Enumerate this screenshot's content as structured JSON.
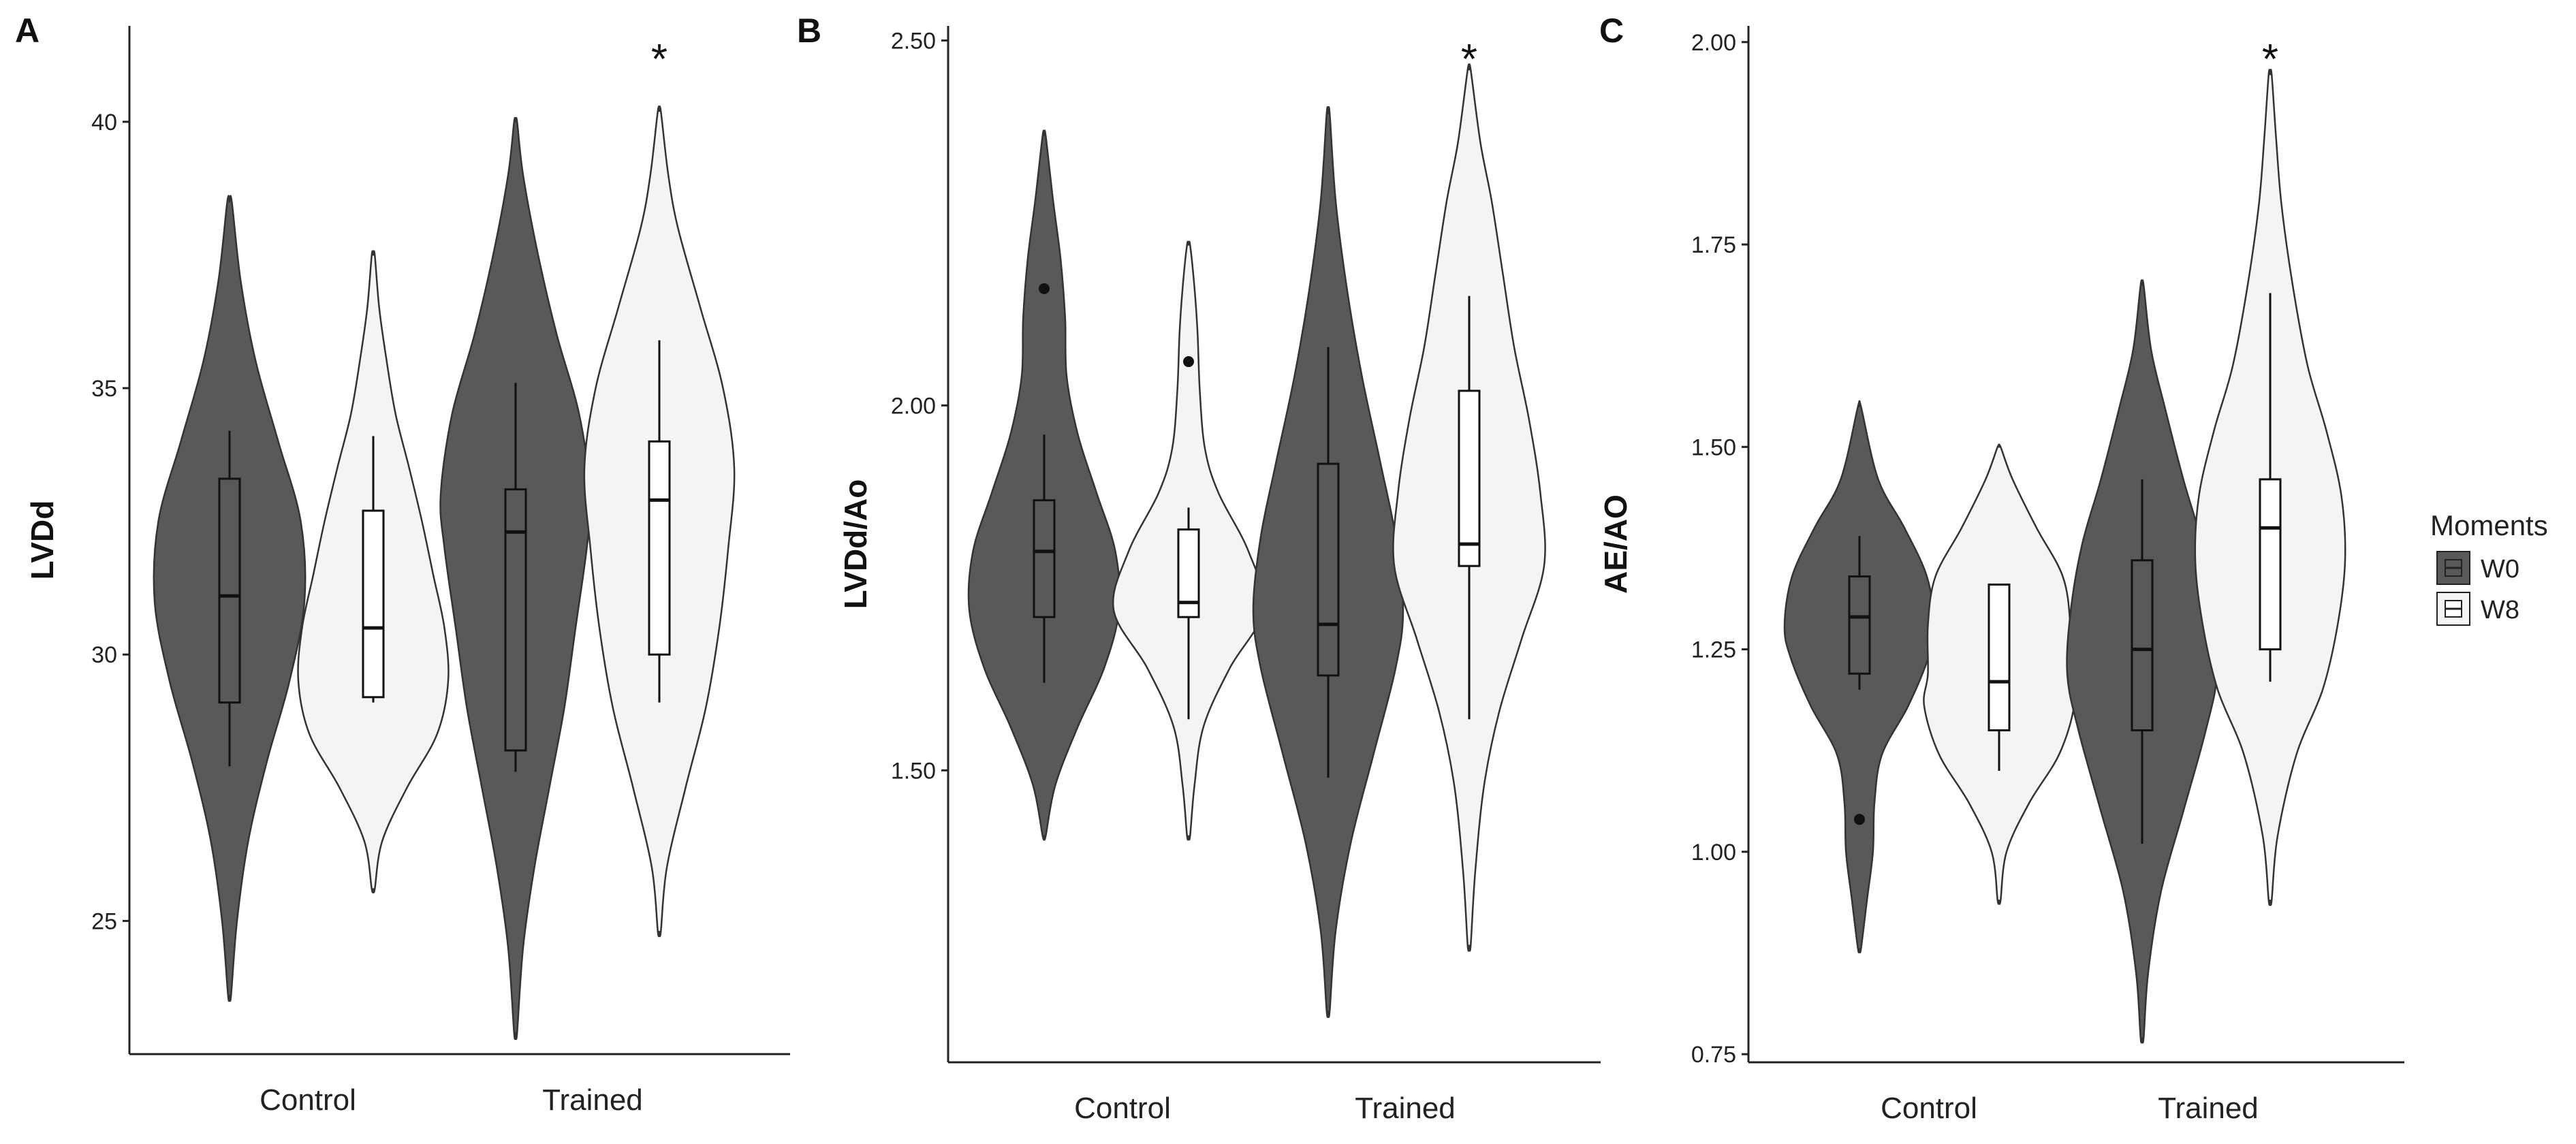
{
  "colors": {
    "w0_fill": "#595959",
    "w8_fill": "#f4f4f4",
    "outline": "#333333",
    "axis": "#222222"
  },
  "legend": {
    "title": "Moments",
    "items": [
      {
        "label": "W0",
        "fill": "#595959"
      },
      {
        "label": "W8",
        "fill": "#f4f4f4"
      }
    ]
  },
  "chart_data": [
    {
      "type": "violin",
      "panel_letter": "A",
      "ylabel": "LVDd",
      "ylim": [
        22.5,
        41.8
      ],
      "yticks": [
        25,
        30,
        35,
        40
      ],
      "tick_labels": [
        "25",
        "30",
        "35",
        "40"
      ],
      "categories": [
        "Control",
        "Trained"
      ],
      "annotation": "*",
      "groups": [
        {
          "category": "Control",
          "moment": "W0",
          "violin_profile": [
            [
              23.6,
              0.02
            ],
            [
              25.0,
              0.1
            ],
            [
              26.5,
              0.25
            ],
            [
              28.0,
              0.5
            ],
            [
              29.5,
              0.8
            ],
            [
              31.0,
              1.0
            ],
            [
              32.5,
              0.95
            ],
            [
              34.0,
              0.65
            ],
            [
              35.5,
              0.35
            ],
            [
              37.0,
              0.15
            ],
            [
              38.5,
              0.03
            ]
          ],
          "box": {
            "q1": 29.1,
            "median": 31.1,
            "q3": 33.3,
            "whisker_low": 27.9,
            "whisker_high": 34.2
          },
          "outliers": []
        },
        {
          "category": "Control",
          "moment": "W8",
          "violin_profile": [
            [
              25.6,
              0.02
            ],
            [
              26.5,
              0.12
            ],
            [
              27.5,
              0.45
            ],
            [
              28.5,
              0.85
            ],
            [
              29.5,
              1.0
            ],
            [
              30.5,
              0.95
            ],
            [
              31.5,
              0.8
            ],
            [
              32.5,
              0.65
            ],
            [
              33.5,
              0.48
            ],
            [
              34.5,
              0.3
            ],
            [
              35.5,
              0.18
            ],
            [
              36.5,
              0.08
            ],
            [
              37.5,
              0.02
            ]
          ],
          "box": {
            "q1": 29.2,
            "median": 30.5,
            "q3": 32.7,
            "whisker_low": 29.1,
            "whisker_high": 34.1
          },
          "outliers": []
        },
        {
          "category": "Trained",
          "moment": "W0",
          "violin_profile": [
            [
              22.9,
              0.02
            ],
            [
              24.5,
              0.1
            ],
            [
              26.0,
              0.25
            ],
            [
              27.5,
              0.45
            ],
            [
              29.0,
              0.65
            ],
            [
              30.5,
              0.8
            ],
            [
              32.0,
              0.95
            ],
            [
              33.0,
              1.0
            ],
            [
              34.5,
              0.85
            ],
            [
              36.0,
              0.55
            ],
            [
              37.5,
              0.3
            ],
            [
              39.0,
              0.1
            ],
            [
              40.0,
              0.02
            ]
          ],
          "box": {
            "q1": 28.2,
            "median": 32.3,
            "q3": 33.1,
            "whisker_low": 27.8,
            "whisker_high": 35.1
          },
          "outliers": []
        },
        {
          "category": "Trained",
          "moment": "W8",
          "violin_profile": [
            [
              24.8,
              0.02
            ],
            [
              26.0,
              0.1
            ],
            [
              27.5,
              0.35
            ],
            [
              29.0,
              0.62
            ],
            [
              30.5,
              0.8
            ],
            [
              32.0,
              0.92
            ],
            [
              33.5,
              1.0
            ],
            [
              35.0,
              0.85
            ],
            [
              36.5,
              0.55
            ],
            [
              38.0,
              0.25
            ],
            [
              39.0,
              0.12
            ],
            [
              40.2,
              0.02
            ]
          ],
          "box": {
            "q1": 30.0,
            "median": 32.9,
            "q3": 34.0,
            "whisker_low": 29.1,
            "whisker_high": 35.9
          },
          "outliers": []
        }
      ]
    },
    {
      "type": "violin",
      "panel_letter": "B",
      "ylabel": "LVDd/Ao",
      "ylim": [
        1.1,
        2.52
      ],
      "yticks": [
        1.5,
        2.0,
        2.5
      ],
      "tick_labels": [
        "1.50",
        "2.00",
        "2.50"
      ],
      "categories": [
        "Control",
        "Trained"
      ],
      "annotation": "*",
      "groups": [
        {
          "category": "Control",
          "moment": "W0",
          "violin_profile": [
            [
              1.41,
              0.02
            ],
            [
              1.48,
              0.15
            ],
            [
              1.56,
              0.45
            ],
            [
              1.64,
              0.8
            ],
            [
              1.72,
              1.0
            ],
            [
              1.8,
              0.95
            ],
            [
              1.88,
              0.7
            ],
            [
              1.96,
              0.45
            ],
            [
              2.04,
              0.3
            ],
            [
              2.12,
              0.28
            ],
            [
              2.2,
              0.22
            ],
            [
              2.28,
              0.12
            ],
            [
              2.37,
              0.02
            ]
          ],
          "box": {
            "q1": 1.71,
            "median": 1.8,
            "q3": 1.87,
            "whisker_low": 1.62,
            "whisker_high": 1.96
          },
          "outliers": [
            2.16
          ]
        },
        {
          "category": "Control",
          "moment": "W8",
          "violin_profile": [
            [
              1.41,
              0.02
            ],
            [
              1.48,
              0.08
            ],
            [
              1.56,
              0.2
            ],
            [
              1.64,
              0.55
            ],
            [
              1.72,
              1.0
            ],
            [
              1.8,
              0.8
            ],
            [
              1.88,
              0.4
            ],
            [
              1.94,
              0.22
            ],
            [
              2.02,
              0.15
            ],
            [
              2.1,
              0.12
            ],
            [
              2.16,
              0.08
            ],
            [
              2.22,
              0.02
            ]
          ],
          "box": {
            "q1": 1.71,
            "median": 1.73,
            "q3": 1.83,
            "whisker_low": 1.57,
            "whisker_high": 1.86
          },
          "outliers": [
            2.06
          ]
        },
        {
          "category": "Trained",
          "moment": "W0",
          "violin_profile": [
            [
              1.17,
              0.02
            ],
            [
              1.28,
              0.1
            ],
            [
              1.4,
              0.3
            ],
            [
              1.52,
              0.6
            ],
            [
              1.64,
              0.9
            ],
            [
              1.72,
              1.0
            ],
            [
              1.82,
              0.9
            ],
            [
              1.92,
              0.7
            ],
            [
              2.04,
              0.45
            ],
            [
              2.16,
              0.25
            ],
            [
              2.28,
              0.1
            ],
            [
              2.4,
              0.02
            ]
          ],
          "box": {
            "q1": 1.63,
            "median": 1.7,
            "q3": 1.92,
            "whisker_low": 1.49,
            "whisker_high": 2.08
          },
          "outliers": []
        },
        {
          "category": "Trained",
          "moment": "W8",
          "violin_profile": [
            [
              1.26,
              0.02
            ],
            [
              1.36,
              0.08
            ],
            [
              1.48,
              0.2
            ],
            [
              1.58,
              0.4
            ],
            [
              1.68,
              0.7
            ],
            [
              1.78,
              1.0
            ],
            [
              1.88,
              0.95
            ],
            [
              1.98,
              0.8
            ],
            [
              2.08,
              0.6
            ],
            [
              2.18,
              0.45
            ],
            [
              2.28,
              0.3
            ],
            [
              2.36,
              0.15
            ],
            [
              2.46,
              0.02
            ]
          ],
          "box": {
            "q1": 1.78,
            "median": 1.81,
            "q3": 2.02,
            "whisker_low": 1.57,
            "whisker_high": 2.15
          },
          "outliers": []
        }
      ]
    },
    {
      "type": "violin",
      "panel_letter": "C",
      "ylabel": "AE/AO",
      "ylim": [
        0.74,
        2.02
      ],
      "yticks": [
        0.75,
        1.0,
        1.25,
        1.5,
        1.75,
        2.0
      ],
      "tick_labels": [
        "0.75",
        "1.00",
        "1.25",
        "1.50",
        "1.75",
        "2.00"
      ],
      "categories": [
        "Control",
        "Trained"
      ],
      "annotation": "*",
      "groups": [
        {
          "category": "Control",
          "moment": "W0",
          "violin_profile": [
            [
              0.88,
              0.02
            ],
            [
              0.94,
              0.1
            ],
            [
              1.0,
              0.18
            ],
            [
              1.06,
              0.2
            ],
            [
              1.12,
              0.3
            ],
            [
              1.18,
              0.65
            ],
            [
              1.24,
              0.92
            ],
            [
              1.28,
              1.0
            ],
            [
              1.34,
              0.9
            ],
            [
              1.4,
              0.6
            ],
            [
              1.46,
              0.25
            ],
            [
              1.55,
              0.02
            ]
          ],
          "box": {
            "q1": 1.22,
            "median": 1.29,
            "q3": 1.34,
            "whisker_low": 1.2,
            "whisker_high": 1.39
          },
          "outliers": [
            1.04
          ]
        },
        {
          "category": "Control",
          "moment": "W8",
          "violin_profile": [
            [
              0.94,
              0.02
            ],
            [
              1.0,
              0.1
            ],
            [
              1.06,
              0.4
            ],
            [
              1.12,
              0.8
            ],
            [
              1.18,
              1.0
            ],
            [
              1.22,
              0.95
            ],
            [
              1.28,
              0.95
            ],
            [
              1.34,
              0.85
            ],
            [
              1.4,
              0.5
            ],
            [
              1.46,
              0.18
            ],
            [
              1.5,
              0.02
            ]
          ],
          "box": {
            "q1": 1.15,
            "median": 1.21,
            "q3": 1.33,
            "whisker_low": 1.1,
            "whisker_high": 1.33
          },
          "outliers": []
        },
        {
          "category": "Trained",
          "moment": "W0",
          "violin_profile": [
            [
              0.77,
              0.02
            ],
            [
              0.85,
              0.08
            ],
            [
              0.95,
              0.25
            ],
            [
              1.05,
              0.55
            ],
            [
              1.15,
              0.85
            ],
            [
              1.22,
              1.0
            ],
            [
              1.3,
              0.95
            ],
            [
              1.38,
              0.8
            ],
            [
              1.46,
              0.55
            ],
            [
              1.55,
              0.3
            ],
            [
              1.62,
              0.12
            ],
            [
              1.7,
              0.02
            ]
          ],
          "box": {
            "q1": 1.15,
            "median": 1.25,
            "q3": 1.36,
            "whisker_low": 1.01,
            "whisker_high": 1.46
          },
          "outliers": []
        },
        {
          "category": "Trained",
          "moment": "W8",
          "violin_profile": [
            [
              0.94,
              0.02
            ],
            [
              1.02,
              0.1
            ],
            [
              1.12,
              0.35
            ],
            [
              1.2,
              0.7
            ],
            [
              1.28,
              0.9
            ],
            [
              1.36,
              1.0
            ],
            [
              1.44,
              0.95
            ],
            [
              1.52,
              0.75
            ],
            [
              1.6,
              0.5
            ],
            [
              1.7,
              0.3
            ],
            [
              1.8,
              0.15
            ],
            [
              1.88,
              0.08
            ],
            [
              1.96,
              0.02
            ]
          ],
          "box": {
            "q1": 1.25,
            "median": 1.4,
            "q3": 1.46,
            "whisker_low": 1.21,
            "whisker_high": 1.69
          },
          "outliers": []
        }
      ]
    }
  ]
}
